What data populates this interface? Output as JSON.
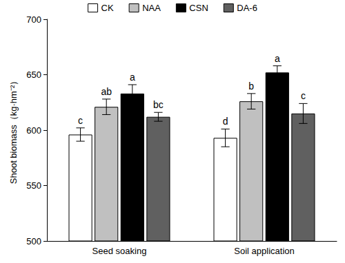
{
  "chart_data": {
    "type": "bar",
    "y_label": "Shoot biomass（kg·hm⁻²）",
    "categories": [
      "Seed soaking",
      "Soil application"
    ],
    "series": [
      {
        "name": "CK",
        "color": "#ffffff",
        "values": [
          596,
          593
        ],
        "errors": [
          6,
          8
        ],
        "letters": [
          "c",
          "d"
        ]
      },
      {
        "name": "NAA",
        "color": "#c0c0c0",
        "values": [
          621,
          626
        ],
        "errors": [
          7,
          7
        ],
        "letters": [
          "ab",
          "b"
        ]
      },
      {
        "name": "CSN",
        "color": "#000000",
        "values": [
          633,
          652
        ],
        "errors": [
          8,
          6
        ],
        "letters": [
          "a",
          "a"
        ]
      },
      {
        "name": "DA-6",
        "color": "#606060",
        "values": [
          612,
          615
        ],
        "errors": [
          4,
          9
        ],
        "letters": [
          "bc",
          "c"
        ]
      }
    ],
    "ylim": [
      500,
      700
    ],
    "yticks": [
      500,
      550,
      600,
      650,
      700
    ],
    "grid": false,
    "legend": "top"
  }
}
